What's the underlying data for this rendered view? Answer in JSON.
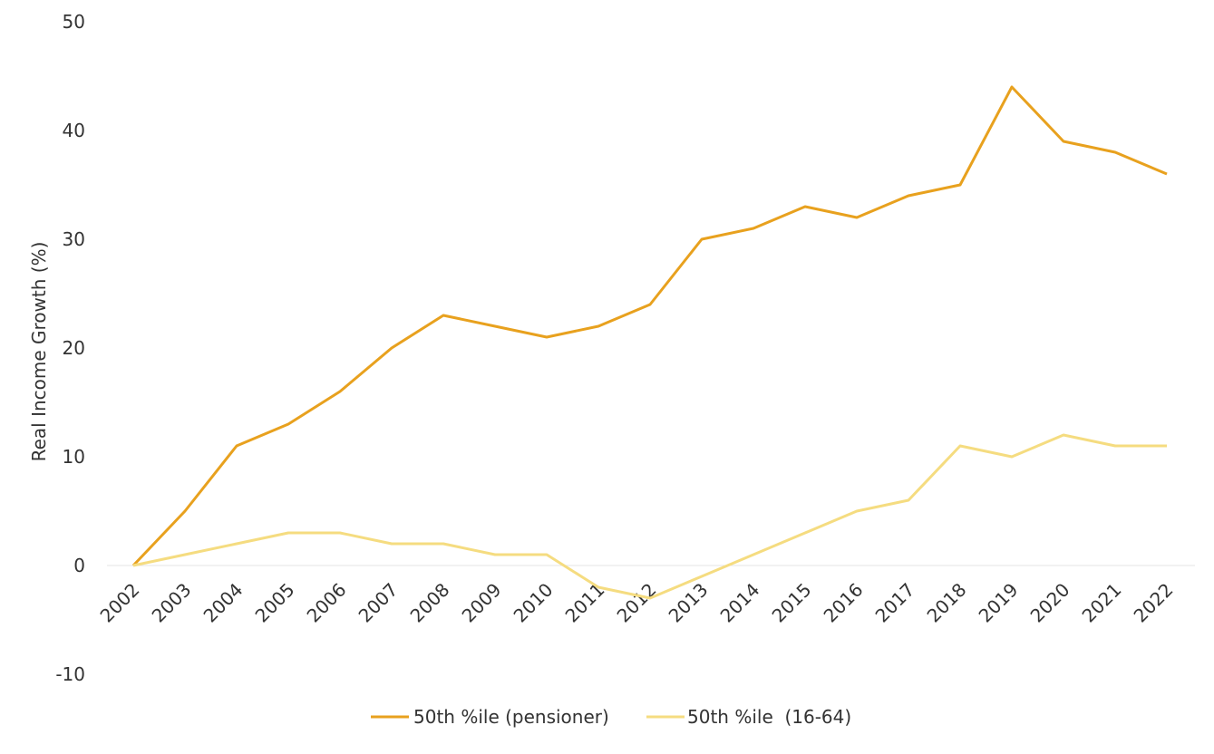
{
  "chart_data": {
    "type": "line",
    "title": "",
    "xlabel": "",
    "ylabel": "Real Income Growth (%)",
    "ylim": [
      -10,
      50
    ],
    "yticks": [
      -10,
      0,
      10,
      20,
      30,
      40,
      50
    ],
    "grid": "zero line only",
    "legend": "bottom-center",
    "categories": [
      "2002",
      "2003",
      "2004",
      "2005",
      "2006",
      "2007",
      "2008",
      "2009",
      "2010",
      "2011",
      "2012",
      "2013",
      "2014",
      "2015",
      "2016",
      "2017",
      "2018",
      "2019",
      "2020",
      "2021",
      "2022"
    ],
    "series": [
      {
        "name": "50th %ile (pensioner)",
        "color": "#E8A11E",
        "values": [
          0,
          5,
          11,
          13,
          16,
          20,
          23,
          22,
          21,
          22,
          24,
          30,
          31,
          33,
          32,
          34,
          35,
          44,
          39,
          38,
          36
        ]
      },
      {
        "name": "50th %ile  (16-64)",
        "color": "#F5DC80",
        "values": [
          0,
          1,
          2,
          3,
          3,
          2,
          2,
          1,
          1,
          -2,
          -3,
          -1,
          1,
          3,
          5,
          6,
          11,
          10,
          12,
          11,
          11
        ]
      }
    ]
  }
}
